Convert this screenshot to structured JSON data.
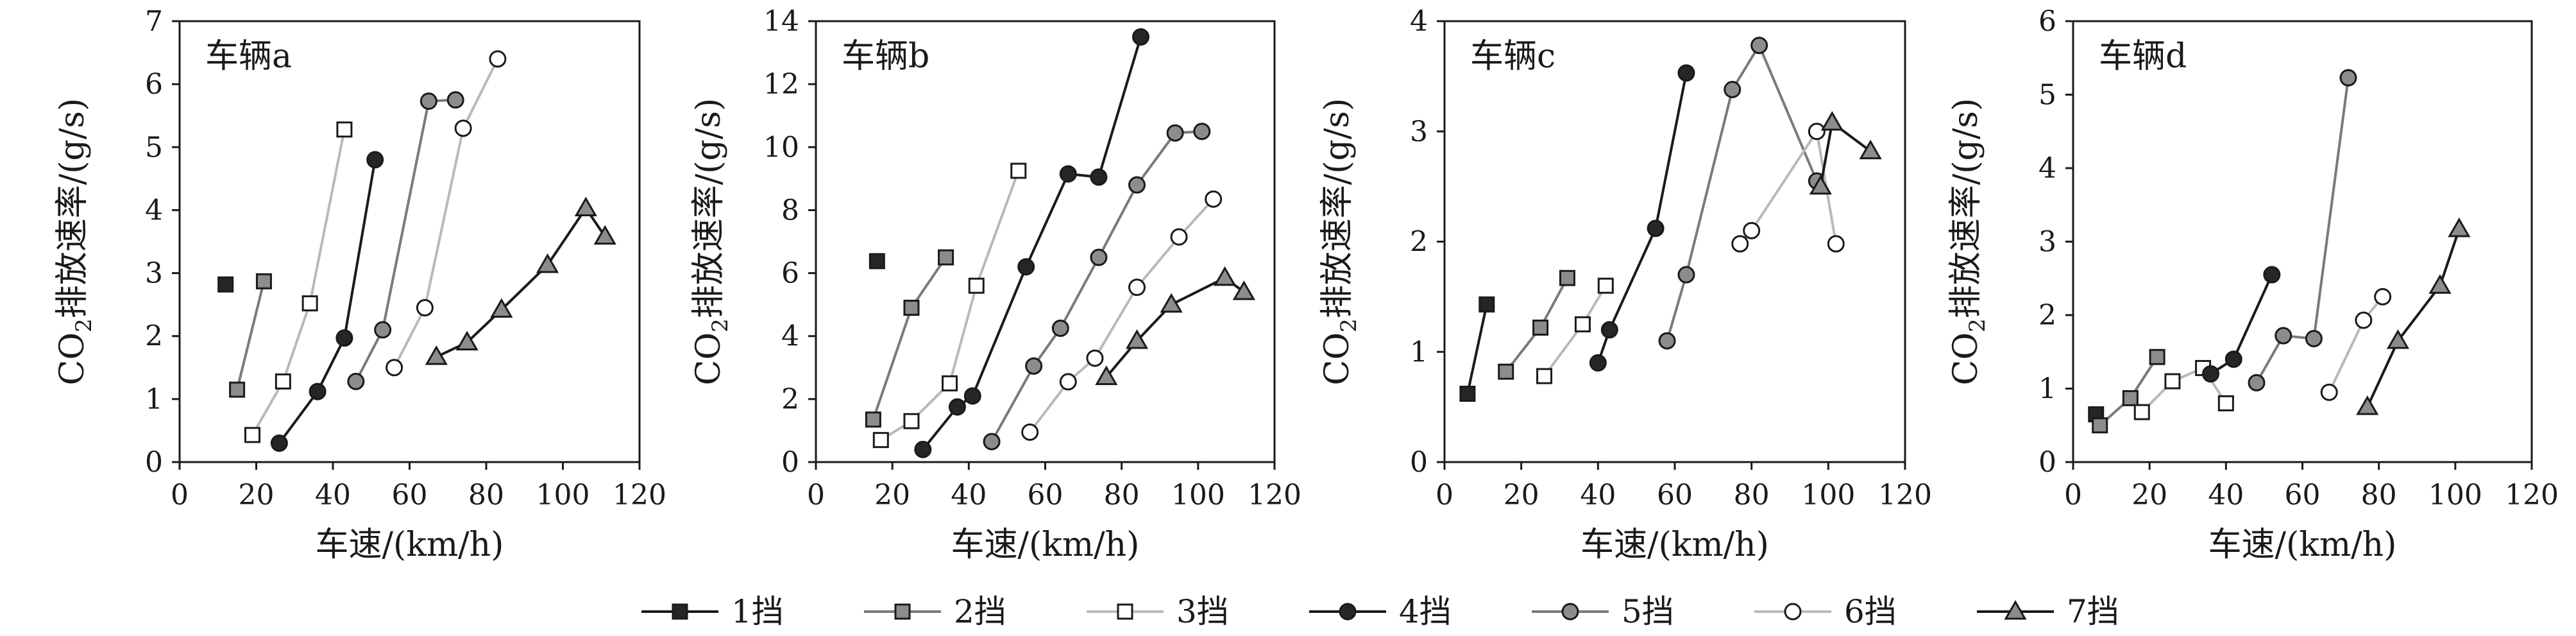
{
  "chart_data": [
    {
      "type": "line",
      "panel_label": "车辆a",
      "xlabel": "车速/(km/h)",
      "ylabel": "CO2排放速率/(g/s)",
      "xlim": [
        0,
        120
      ],
      "ylim": [
        0,
        7
      ],
      "xticks": [
        0,
        20,
        40,
        60,
        80,
        100,
        120
      ],
      "yticks": [
        0,
        1,
        2,
        3,
        4,
        5,
        6,
        7
      ],
      "grid": false,
      "series": [
        {
          "name": "1挡",
          "x": [
            12
          ],
          "y": [
            2.82
          ]
        },
        {
          "name": "2挡",
          "x": [
            15,
            22
          ],
          "y": [
            1.15,
            2.87
          ]
        },
        {
          "name": "3挡",
          "x": [
            19,
            27,
            34,
            43
          ],
          "y": [
            0.43,
            1.28,
            2.52,
            5.28
          ]
        },
        {
          "name": "4挡",
          "x": [
            26,
            36,
            43,
            51
          ],
          "y": [
            0.3,
            1.12,
            1.97,
            4.8
          ]
        },
        {
          "name": "5挡",
          "x": [
            46,
            53,
            65,
            72
          ],
          "y": [
            1.28,
            2.1,
            5.73,
            5.75
          ]
        },
        {
          "name": "6挡",
          "x": [
            56,
            64,
            74,
            83
          ],
          "y": [
            1.5,
            2.45,
            5.3,
            6.4
          ]
        },
        {
          "name": "7挡",
          "x": [
            67,
            75,
            84,
            96,
            106,
            111
          ],
          "y": [
            1.67,
            1.9,
            2.42,
            3.13,
            4.03,
            3.58
          ]
        }
      ]
    },
    {
      "type": "line",
      "panel_label": "车辆b",
      "xlabel": "车速/(km/h)",
      "ylabel": "CO2排放速率/(g/s)",
      "xlim": [
        0,
        120
      ],
      "ylim": [
        0,
        14
      ],
      "xticks": [
        0,
        20,
        40,
        60,
        80,
        100,
        120
      ],
      "yticks": [
        0,
        2,
        4,
        6,
        8,
        10,
        12,
        14
      ],
      "grid": false,
      "series": [
        {
          "name": "1挡",
          "x": [
            16
          ],
          "y": [
            6.38
          ]
        },
        {
          "name": "2挡",
          "x": [
            15,
            25,
            34
          ],
          "y": [
            1.35,
            4.9,
            6.5
          ]
        },
        {
          "name": "3挡",
          "x": [
            17,
            25,
            35,
            42,
            53
          ],
          "y": [
            0.7,
            1.3,
            2.5,
            5.6,
            9.25
          ]
        },
        {
          "name": "4挡",
          "x": [
            28,
            37,
            41,
            55,
            66,
            74,
            85
          ],
          "y": [
            0.4,
            1.75,
            2.1,
            6.2,
            9.15,
            9.05,
            13.5
          ]
        },
        {
          "name": "5挡",
          "x": [
            46,
            57,
            64,
            74,
            84,
            94,
            101
          ],
          "y": [
            0.65,
            3.05,
            4.25,
            6.5,
            8.8,
            10.45,
            10.5
          ]
        },
        {
          "name": "6挡",
          "x": [
            56,
            66,
            73,
            84,
            95,
            104
          ],
          "y": [
            0.95,
            2.55,
            3.3,
            5.55,
            7.15,
            8.35
          ]
        },
        {
          "name": "7挡",
          "x": [
            76,
            84,
            93,
            107,
            112
          ],
          "y": [
            2.7,
            3.85,
            5.0,
            5.85,
            5.4
          ]
        }
      ]
    },
    {
      "type": "line",
      "panel_label": "车辆c",
      "xlabel": "车速/(km/h)",
      "ylabel": "CO2排放速率/(g/s)",
      "xlim": [
        0,
        120
      ],
      "ylim": [
        0,
        4
      ],
      "xticks": [
        0,
        20,
        40,
        60,
        80,
        100,
        120
      ],
      "yticks": [
        0,
        1,
        2,
        3,
        4
      ],
      "grid": false,
      "series": [
        {
          "name": "1挡",
          "x": [
            6,
            11
          ],
          "y": [
            0.62,
            1.43
          ]
        },
        {
          "name": "2挡",
          "x": [
            16,
            25,
            32
          ],
          "y": [
            0.82,
            1.22,
            1.67
          ]
        },
        {
          "name": "3挡",
          "x": [
            26,
            36,
            42
          ],
          "y": [
            0.78,
            1.25,
            1.6
          ]
        },
        {
          "name": "4挡",
          "x": [
            40,
            43,
            55,
            63
          ],
          "y": [
            0.9,
            1.2,
            2.12,
            3.53
          ]
        },
        {
          "name": "5挡",
          "x": [
            58,
            63,
            75,
            82,
            97
          ],
          "y": [
            1.1,
            1.7,
            3.38,
            3.78,
            2.55
          ]
        },
        {
          "name": "6挡",
          "x": [
            77,
            80,
            97,
            102
          ],
          "y": [
            1.98,
            2.1,
            3.0,
            1.98
          ]
        },
        {
          "name": "7挡",
          "x": [
            98,
            101,
            111
          ],
          "y": [
            2.5,
            3.08,
            2.82
          ]
        }
      ]
    },
    {
      "type": "line",
      "panel_label": "车辆d",
      "xlabel": "车速/(km/h)",
      "ylabel": "CO2排放速率/(g/s)",
      "xlim": [
        0,
        120
      ],
      "ylim": [
        0,
        6
      ],
      "xticks": [
        0,
        20,
        40,
        60,
        80,
        100,
        120
      ],
      "yticks": [
        0,
        1,
        2,
        3,
        4,
        5,
        6
      ],
      "grid": false,
      "series": [
        {
          "name": "1挡",
          "x": [
            6
          ],
          "y": [
            0.65
          ]
        },
        {
          "name": "2挡",
          "x": [
            7,
            15,
            22
          ],
          "y": [
            0.5,
            0.87,
            1.43
          ]
        },
        {
          "name": "3挡",
          "x": [
            18,
            26,
            34,
            40
          ],
          "y": [
            0.68,
            1.1,
            1.28,
            0.8
          ]
        },
        {
          "name": "4挡",
          "x": [
            36,
            42,
            52
          ],
          "y": [
            1.2,
            1.4,
            2.55
          ]
        },
        {
          "name": "5挡",
          "x": [
            48,
            55,
            63,
            72
          ],
          "y": [
            1.08,
            1.72,
            1.68,
            5.23
          ]
        },
        {
          "name": "6挡",
          "x": [
            67,
            76,
            81
          ],
          "y": [
            0.95,
            1.93,
            2.25
          ]
        },
        {
          "name": "7挡",
          "x": [
            77,
            85,
            96,
            101
          ],
          "y": [
            0.75,
            1.65,
            2.4,
            3.17
          ]
        }
      ]
    }
  ],
  "legend": {
    "placement": "bottom",
    "items": [
      {
        "label": "1挡",
        "marker": "square",
        "fill": "#262626",
        "line": "#1a1a1a"
      },
      {
        "label": "2挡",
        "marker": "square",
        "fill": "#8c8c8c",
        "line": "#7a7a7a"
      },
      {
        "label": "3挡",
        "marker": "square",
        "fill": "#ffffff",
        "line": "#b9b9b9"
      },
      {
        "label": "4挡",
        "marker": "circle",
        "fill": "#262626",
        "line": "#1a1a1a"
      },
      {
        "label": "5挡",
        "marker": "circle",
        "fill": "#8c8c8c",
        "line": "#7a7a7a"
      },
      {
        "label": "6挡",
        "marker": "circle",
        "fill": "#ffffff",
        "line": "#b9b9b9"
      },
      {
        "label": "7挡",
        "marker": "triangle",
        "fill": "#8c8c8c",
        "line": "#1a1a1a"
      }
    ]
  }
}
